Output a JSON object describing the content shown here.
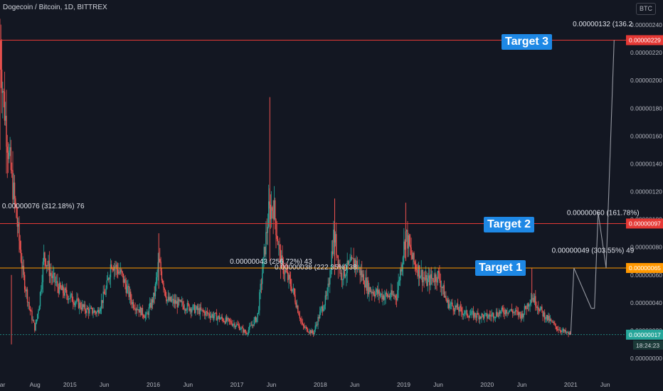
{
  "header": {
    "symbol": "Dogecoin / Bitcoin, 1D, BITTREX",
    "currency": "BTC"
  },
  "annotations": {
    "target1": "Target 1",
    "target2": "Target 2",
    "target3": "Target 3",
    "measure_left": "0.00000076 (312.18%) 76",
    "measure_mid_a": "0.00000043 (256.72%) 43",
    "measure_mid_b": "0.00000038 (222.35%) 38",
    "measure_right_1": "0.00000049 (303.55%) 49",
    "measure_right_2": "0.00000060 (161.78%)",
    "measure_right_3": "0.00000132 (136.2"
  },
  "colors": {
    "background": "#131722",
    "up": "#26a69a",
    "down": "#ef5350",
    "target_line_red": "#e53935",
    "target_line_orange": "#ff9800",
    "current_price": "#26a69a",
    "label_bg": "#1e88e5"
  },
  "chart_data": {
    "type": "candlestick",
    "title": "Dogecoin / Bitcoin, 1D, BITTREX",
    "y_axis": {
      "unit": "BTC",
      "ticks": [
        "0.00000240",
        "0.00000220",
        "0.00000200",
        "0.00000180",
        "0.00000160",
        "0.00000140",
        "0.00000120",
        "0.00000100",
        "0.00000080",
        "0.00000060",
        "0.00000040",
        "0.00000020",
        "0.00000000"
      ],
      "range": [
        0,
        2.45e-06
      ]
    },
    "x_axis": {
      "ticks": [
        "Mar",
        "Aug",
        "2015",
        "Jun",
        "2016",
        "Jun",
        "2017",
        "Jun",
        "2018",
        "Jun",
        "2019",
        "Jun",
        "2020",
        "Jun",
        "2021",
        "Jun"
      ],
      "range": [
        "2014-03-01",
        "2021-08-31"
      ]
    },
    "horizontal_levels": [
      {
        "name": "Target 1",
        "value": 6.5e-07,
        "label": "0.00000065",
        "color": "#ff9800"
      },
      {
        "name": "Target 2",
        "value": 9.7e-07,
        "label": "0.00000097",
        "color": "#e53935"
      },
      {
        "name": "Target 3",
        "value": 2.29e-06,
        "label": "0.00000229",
        "color": "#e53935"
      }
    ],
    "current_price": {
      "value": 1.7e-07,
      "label": "0.00000017",
      "countdown": "18:24:23"
    },
    "price_path": [
      [
        "2014-03-01",
        2.29e-06
      ],
      [
        "2014-03-15",
        1.9e-06
      ],
      [
        "2014-04-10",
        1.45e-06
      ],
      [
        "2014-05-10",
        1.05e-06
      ],
      [
        "2014-06-10",
        6e-07
      ],
      [
        "2014-07-10",
        3.5e-07
      ],
      [
        "2014-08-01",
        2.1e-07
      ],
      [
        "2014-08-20",
        4e-07
      ],
      [
        "2014-09-10",
        7.5e-07
      ],
      [
        "2014-10-10",
        6e-07
      ],
      [
        "2014-11-15",
        5e-07
      ],
      [
        "2015-01-10",
        4.3e-07
      ],
      [
        "2015-03-10",
        3.5e-07
      ],
      [
        "2015-05-01",
        3.3e-07
      ],
      [
        "2015-06-10",
        5e-07
      ],
      [
        "2015-07-01",
        7e-07
      ],
      [
        "2015-08-15",
        6e-07
      ],
      [
        "2015-10-01",
        4e-07
      ],
      [
        "2015-12-01",
        3e-07
      ],
      [
        "2016-01-05",
        4.5e-07
      ],
      [
        "2016-01-25",
        7e-07
      ],
      [
        "2016-03-01",
        4.2e-07
      ],
      [
        "2016-06-01",
        3.7e-07
      ],
      [
        "2016-10-01",
        3e-07
      ],
      [
        "2017-01-01",
        2.4e-07
      ],
      [
        "2017-02-10",
        1.8e-07
      ],
      [
        "2017-04-01",
        3e-07
      ],
      [
        "2017-05-20",
        1.05e-06
      ],
      [
        "2017-06-10",
        1.1e-06
      ],
      [
        "2017-07-10",
        7e-07
      ],
      [
        "2017-09-01",
        5e-07
      ],
      [
        "2017-10-15",
        2.3e-07
      ],
      [
        "2017-12-01",
        1.8e-07
      ],
      [
        "2018-01-05",
        3.5e-07
      ],
      [
        "2018-02-01",
        4.5e-07
      ],
      [
        "2018-03-01",
        9e-07
      ],
      [
        "2018-04-01",
        6e-07
      ],
      [
        "2018-06-01",
        7e-07
      ],
      [
        "2018-08-01",
        5e-07
      ],
      [
        "2018-10-01",
        4.5e-07
      ],
      [
        "2018-12-01",
        4.5e-07
      ],
      [
        "2019-01-10",
        9e-07
      ],
      [
        "2019-02-10",
        7e-07
      ],
      [
        "2019-04-10",
        5.5e-07
      ],
      [
        "2019-06-01",
        6e-07
      ],
      [
        "2019-07-10",
        4e-07
      ],
      [
        "2019-10-01",
        3.2e-07
      ],
      [
        "2020-01-01",
        3e-07
      ],
      [
        "2020-04-01",
        3.5e-07
      ],
      [
        "2020-06-01",
        3.1e-07
      ],
      [
        "2020-07-15",
        4.5e-07
      ],
      [
        "2020-09-01",
        3.2e-07
      ],
      [
        "2020-11-01",
        2.2e-07
      ],
      [
        "2020-12-15",
        1.8e-07
      ],
      [
        "2021-01-01",
        1.7e-07
      ]
    ],
    "projection_path": [
      [
        "2021-01-01",
        1.7e-07
      ],
      [
        "2021-01-15",
        6.5e-07
      ],
      [
        "2021-04-01",
        3.6e-07
      ],
      [
        "2021-04-15",
        3.6e-07
      ],
      [
        "2021-05-01",
        1.05e-06
      ],
      [
        "2021-06-05",
        6.5e-07
      ],
      [
        "2021-07-10",
        2.29e-06
      ]
    ],
    "measure_labels": [
      {
        "text_key": "measure_left",
        "date": "2014-03-10",
        "value": 1.08e-06
      },
      {
        "text_key": "measure_mid_a",
        "date": "2016-12-01",
        "value": 6.8e-07
      },
      {
        "text_key": "measure_mid_b",
        "date": "2017-06-15",
        "value": 6.4e-07
      },
      {
        "text_key": "measure_right_1",
        "date": "2020-10-10",
        "value": 7.6e-07
      },
      {
        "text_key": "measure_right_2",
        "date": "2020-12-15",
        "value": 1.03e-06
      },
      {
        "text_key": "measure_right_3",
        "date": "2021-01-10",
        "value": 2.39e-06
      }
    ]
  }
}
